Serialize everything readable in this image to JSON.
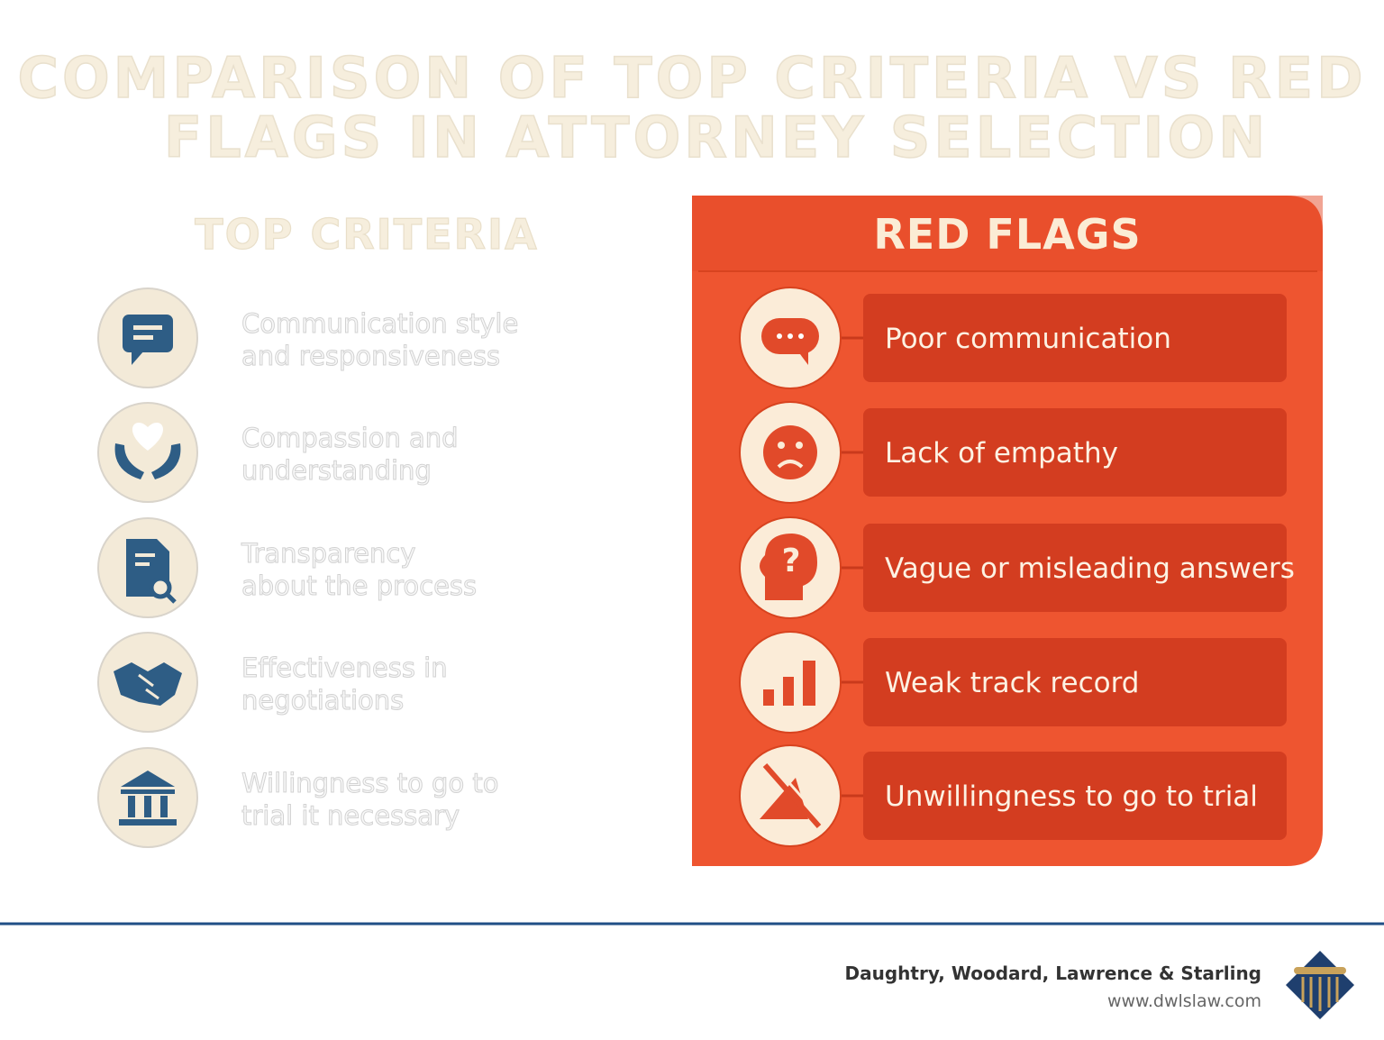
{
  "title": {
    "lines": [
      "COMPARISON OF TOP CRITERIA VS  RED",
      "FLAGS IN ATTORNEY SELECTION"
    ]
  },
  "top_criteria": {
    "heading": "TOP CRITERIA",
    "items": [
      {
        "lines": [
          "Communication style",
          "and responsiveness"
        ]
      },
      {
        "lines": [
          "Compassion and",
          "understanding"
        ]
      },
      {
        "lines": [
          "Transparency",
          "about the process"
        ]
      },
      {
        "lines": [
          "Effectiveness in",
          "negotiations"
        ]
      },
      {
        "lines": [
          "Willingness to go to",
          "trial it necessary"
        ]
      }
    ]
  },
  "red_flags": {
    "heading": "RED FLAGS",
    "items": [
      "Poor communication",
      "Lack of empathy",
      "Vague or misleading answers",
      "Weak track record",
      "Unwillingness to go to trial"
    ]
  },
  "footer": {
    "firm": "Daughtry, Woodard, Lawrence & Starling",
    "url": "www.dwlslaw.com"
  }
}
